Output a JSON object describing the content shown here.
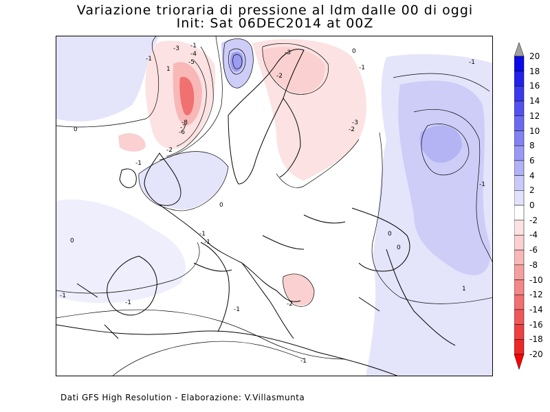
{
  "title": {
    "line1": "Variazione trioraria di pressione al ldm dalle 00 di oggi",
    "line2": "Init: Sat 06DEC2014 at 00Z"
  },
  "footer": "Dati GFS High Resolution - Elaborazione: V.Villasmunta",
  "colorbar": {
    "labels": [
      "20",
      "18",
      "16",
      "14",
      "12",
      "10",
      "8",
      "6",
      "4",
      "2",
      "0",
      "-2",
      "-4",
      "-6",
      "-8",
      "-10",
      "-12",
      "-14",
      "-16",
      "-18",
      "-20"
    ],
    "colors": [
      "#0a0ae8",
      "#2222ea",
      "#3a3aed",
      "#5252ef",
      "#6a6af1",
      "#8282f3",
      "#9a9af5",
      "#b2b2f8",
      "#cacafa",
      "#e2e2fc",
      "#ffffff",
      "#fce2e2",
      "#fad0d0",
      "#f8b8b8",
      "#f5a0a0",
      "#f38888",
      "#f17070",
      "#ef5858",
      "#ed4040",
      "#ea2828",
      "#ff0000"
    ],
    "top_arrow_color": "#a0a0a0",
    "bottom_arrow_color": "#ff0000"
  },
  "contour_labels": [
    {
      "text": "-3"
    },
    {
      "text": "-4"
    },
    {
      "text": "-5"
    },
    {
      "text": "-1"
    },
    {
      "text": "-8"
    },
    {
      "text": "-7"
    },
    {
      "text": "-6"
    },
    {
      "text": "-2"
    },
    {
      "text": "0"
    },
    {
      "text": "-1"
    },
    {
      "text": "0"
    },
    {
      "text": "-1"
    },
    {
      "text": "-2"
    },
    {
      "text": "-3"
    },
    {
      "text": "0"
    },
    {
      "text": "-1"
    },
    {
      "text": "-3"
    },
    {
      "text": "-2"
    },
    {
      "text": "-1"
    },
    {
      "text": "-1"
    },
    {
      "text": "0"
    },
    {
      "text": "-1"
    },
    {
      "text": "-1"
    },
    {
      "text": "-1"
    },
    {
      "text": "-1"
    },
    {
      "text": "-2"
    },
    {
      "text": "-1"
    },
    {
      "text": "1"
    },
    {
      "text": "-1"
    },
    {
      "text": "0"
    },
    {
      "text": "1"
    },
    {
      "text": "0"
    }
  ]
}
